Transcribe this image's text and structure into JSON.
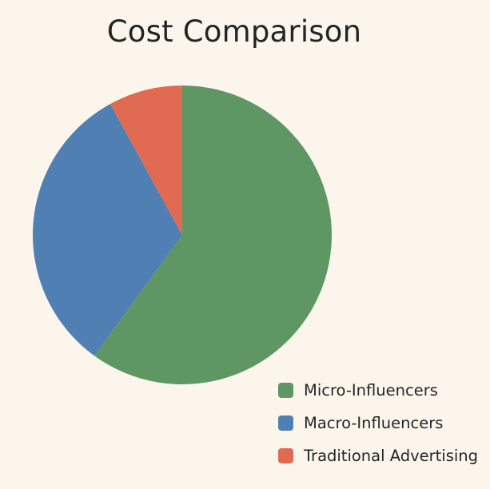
{
  "chart_data": {
    "type": "pie",
    "title": "Cost Comparison",
    "labels": [
      "Micro-Influencers",
      "Macro-Influencers",
      "Traditional Advertising"
    ],
    "values": [
      60,
      32,
      8
    ],
    "colors": [
      "#5e9664",
      "#5080b3",
      "#e06a52"
    ],
    "start_angle_deg": 0,
    "direction": "clockwise",
    "legend_position": "bottom-right"
  }
}
